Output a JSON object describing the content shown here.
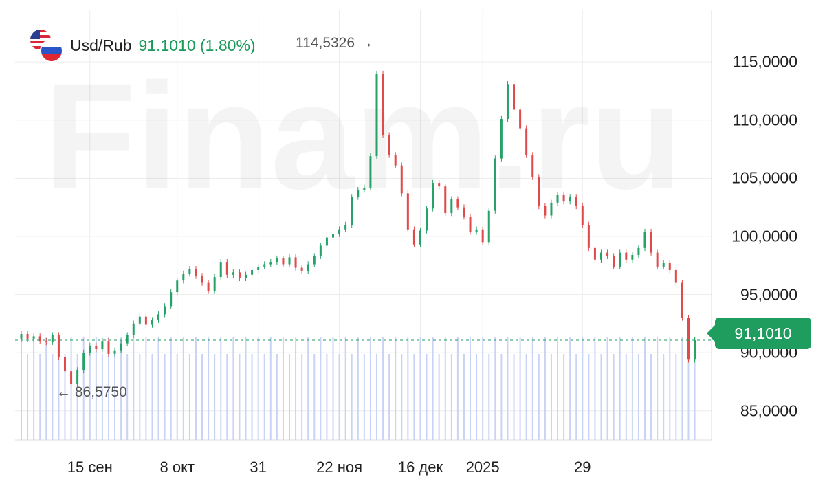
{
  "watermark": "Finam.ru",
  "header": {
    "pair": "Usd/Rub",
    "price_change": "91.1010 (1.80%)"
  },
  "icons": [
    "us-flag-icon",
    "ru-flag-icon"
  ],
  "colors": {
    "up": "#26a269",
    "down": "#e04a4a",
    "volume": "#c9d3f5",
    "last_price": "#1f9d5f",
    "grid": "#ececec"
  },
  "last_price_label": "91,1010",
  "annotations": {
    "high": "114,5326",
    "low": "86,5750"
  },
  "chart_data": {
    "type": "candlestick",
    "symbol": "Usd/Rub",
    "y_ticks": [
      {
        "value": 115,
        "label": "115,0000"
      },
      {
        "value": 110,
        "label": "110,0000"
      },
      {
        "value": 105,
        "label": "105,0000"
      },
      {
        "value": 100,
        "label": "100,0000"
      },
      {
        "value": 95,
        "label": "95,0000"
      },
      {
        "value": 90,
        "label": "90,0000"
      },
      {
        "value": 85,
        "label": "85,0000"
      }
    ],
    "x_ticks": [
      {
        "index": 11,
        "label": "15 сен"
      },
      {
        "index": 25,
        "label": "8 окт"
      },
      {
        "index": 38,
        "label": "31"
      },
      {
        "index": 51,
        "label": "22 ноя"
      },
      {
        "index": 64,
        "label": "16 дек"
      },
      {
        "index": 74,
        "label": "2025"
      },
      {
        "index": 90,
        "label": "29"
      }
    ],
    "ylim": [
      82.5,
      119.5
    ],
    "last_price": 91.101,
    "high": 114.5326,
    "low": 86.575,
    "closes": [
      91.6,
      91.2,
      91.4,
      91.0,
      90.9,
      91.5,
      89.6,
      88.4,
      87.3,
      88.5,
      90.0,
      90.6,
      90.3,
      91.0,
      89.9,
      90.2,
      90.8,
      91.5,
      92.5,
      93.1,
      92.4,
      92.8,
      93.3,
      94.0,
      95.2,
      96.2,
      96.8,
      97.2,
      96.6,
      96.0,
      95.3,
      96.5,
      97.8,
      96.7,
      96.9,
      96.4,
      96.7,
      97.1,
      97.4,
      97.6,
      97.8,
      98.1,
      97.6,
      98.2,
      97.3,
      97.0,
      97.6,
      98.3,
      99.2,
      99.9,
      100.2,
      100.6,
      101.0,
      103.4,
      104.0,
      104.2,
      106.9,
      114.0,
      108.7,
      107.0,
      106.1,
      103.7,
      100.6,
      99.3,
      100.5,
      102.4,
      104.6,
      104.3,
      102.0,
      103.2,
      102.5,
      101.7,
      100.4,
      100.6,
      99.5,
      102.2,
      106.7,
      110.1,
      113.1,
      110.9,
      109.3,
      107.0,
      105.1,
      102.6,
      101.8,
      102.9,
      103.6,
      103.0,
      103.4,
      102.6,
      101.0,
      99.0,
      98.0,
      98.6,
      98.3,
      97.4,
      98.6,
      98.0,
      98.4,
      99.0,
      100.4,
      98.6,
      97.4,
      97.7,
      97.1,
      96.0,
      93.0,
      89.4,
      91.1
    ],
    "volumes": [
      0.6,
      0.5,
      0.6,
      0.5,
      0.6,
      0.5,
      0.6,
      0.5,
      0.6,
      0.5,
      0.6,
      0.5,
      0.6,
      0.5,
      0.6,
      0.5,
      0.6,
      0.5,
      0.6,
      0.5,
      0.6,
      0.5,
      0.6,
      0.5,
      0.6,
      0.5,
      0.6,
      0.5,
      0.6,
      0.5,
      0.6,
      0.5,
      0.6,
      0.5,
      0.6,
      0.5,
      0.6,
      0.5,
      0.6,
      0.5,
      0.6,
      0.5,
      0.6,
      0.5,
      0.6,
      0.5,
      0.6,
      0.5,
      0.6,
      0.5,
      0.6,
      0.5,
      0.6,
      0.5,
      0.6,
      0.5,
      0.6,
      0.5,
      0.6,
      0.5,
      0.6,
      0.5,
      0.6,
      0.5,
      0.6,
      0.5,
      0.6,
      0.5,
      0.6,
      0.5,
      0.6,
      0.5,
      0.6,
      0.5,
      0.6,
      0.5,
      0.6,
      0.5,
      0.6,
      0.5,
      0.6,
      0.5,
      0.6,
      0.5,
      0.6,
      0.5,
      0.6,
      0.5,
      0.6,
      0.5,
      0.6,
      0.5,
      0.6,
      0.5,
      0.6,
      0.5,
      0.6,
      0.5,
      0.6,
      0.5,
      0.6,
      0.5,
      0.6,
      0.5,
      0.6,
      0.5,
      0.6,
      0.5,
      0.6
    ],
    "grid": true
  }
}
